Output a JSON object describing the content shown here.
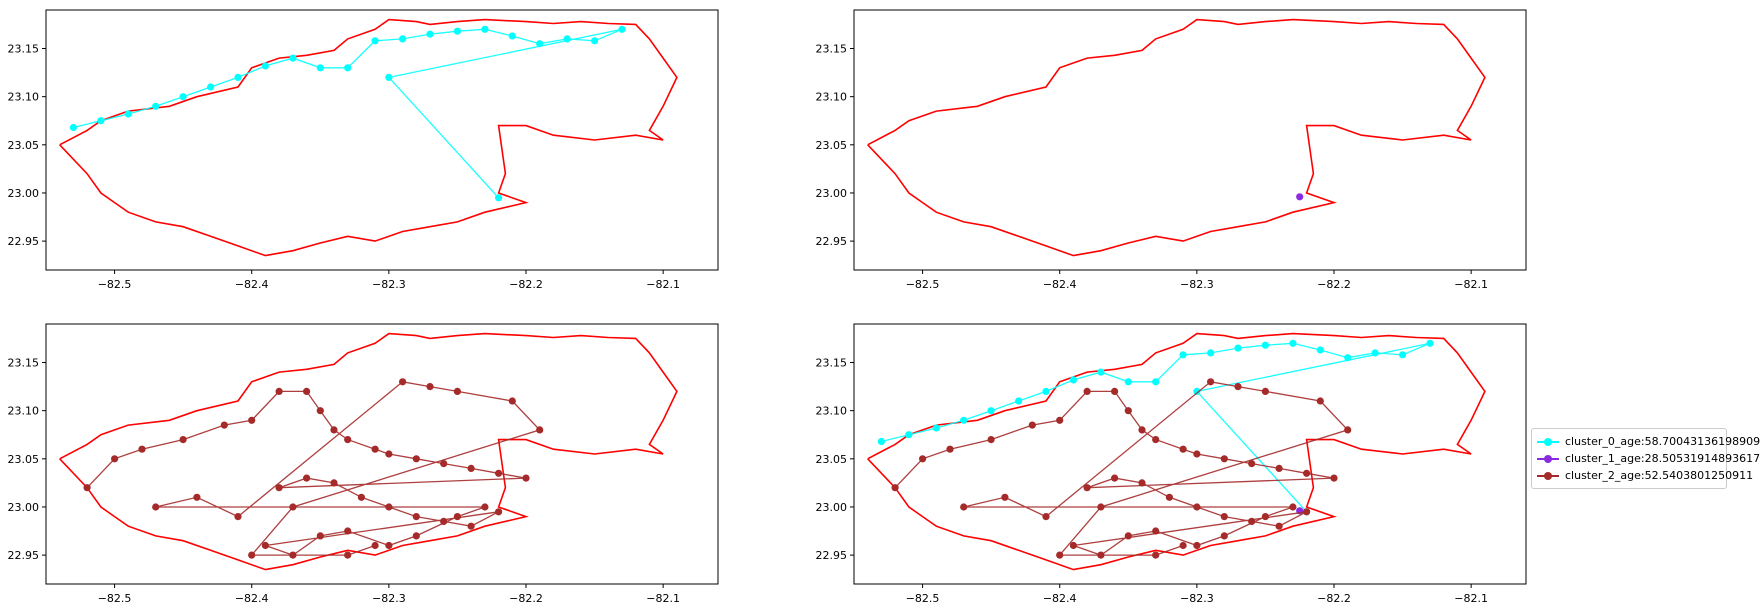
{
  "chart_data": [
    {
      "type": "scatter",
      "title": "",
      "xlabel": "",
      "ylabel": "",
      "xlim": [
        -82.55,
        -82.06
      ],
      "ylim": [
        22.92,
        23.19
      ],
      "x_ticks": [
        -82.5,
        -82.4,
        -82.3,
        -82.2,
        -82.1
      ],
      "y_ticks": [
        22.95,
        23.0,
        23.05,
        23.1,
        23.15
      ],
      "grid": false,
      "series": [
        {
          "name": "",
          "key": "cluster_0",
          "color": "#00ffff",
          "x": [
            -82.53,
            -82.51,
            -82.49,
            -82.47,
            -82.45,
            -82.43,
            -82.41,
            -82.39,
            -82.37,
            -82.35,
            -82.33,
            -82.31,
            -82.29,
            -82.27,
            -82.25,
            -82.23,
            -82.21,
            -82.19,
            -82.17,
            -82.15,
            -82.13,
            -82.3,
            -82.22
          ],
          "y": [
            23.068,
            23.075,
            23.082,
            23.09,
            23.1,
            23.11,
            23.12,
            23.132,
            23.14,
            23.13,
            23.13,
            23.158,
            23.16,
            23.165,
            23.168,
            23.17,
            23.163,
            23.155,
            23.16,
            23.158,
            23.17,
            23.12,
            22.995
          ]
        }
      ]
    },
    {
      "type": "scatter",
      "title": "",
      "xlabel": "",
      "ylabel": "",
      "xlim": [
        -82.55,
        -82.06
      ],
      "ylim": [
        22.92,
        23.19
      ],
      "x_ticks": [
        -82.5,
        -82.4,
        -82.3,
        -82.2,
        -82.1
      ],
      "y_ticks": [
        22.95,
        23.0,
        23.05,
        23.1,
        23.15
      ],
      "grid": false,
      "series": [
        {
          "name": "",
          "key": "cluster_1",
          "color": "#8a2be2",
          "x": [
            -82.225
          ],
          "y": [
            22.996
          ]
        }
      ]
    },
    {
      "type": "scatter",
      "title": "",
      "xlabel": "",
      "ylabel": "",
      "xlim": [
        -82.55,
        -82.06
      ],
      "ylim": [
        22.92,
        23.19
      ],
      "x_ticks": [
        -82.5,
        -82.4,
        -82.3,
        -82.2,
        -82.1
      ],
      "y_ticks": [
        22.95,
        23.0,
        23.05,
        23.1,
        23.15
      ],
      "grid": false,
      "series": [
        {
          "name": "",
          "key": "cluster_2",
          "color": "#a52a2a",
          "x": [
            -82.52,
            -82.5,
            -82.48,
            -82.45,
            -82.42,
            -82.4,
            -82.38,
            -82.36,
            -82.35,
            -82.34,
            -82.33,
            -82.31,
            -82.3,
            -82.28,
            -82.26,
            -82.24,
            -82.22,
            -82.2,
            -82.38,
            -82.36,
            -82.34,
            -82.32,
            -82.3,
            -82.28,
            -82.26,
            -82.24,
            -82.22,
            -82.39,
            -82.37,
            -82.35,
            -82.33,
            -82.3,
            -82.28,
            -82.25,
            -82.23,
            -82.47,
            -82.44,
            -82.41,
            -82.29,
            -82.27,
            -82.25,
            -82.21,
            -82.19,
            -82.37,
            -82.4,
            -82.33,
            -82.31
          ],
          "y": [
            23.02,
            23.05,
            23.06,
            23.07,
            23.085,
            23.09,
            23.12,
            23.12,
            23.1,
            23.08,
            23.07,
            23.06,
            23.055,
            23.05,
            23.045,
            23.04,
            23.035,
            23.03,
            23.02,
            23.03,
            23.025,
            23.01,
            23.0,
            22.99,
            22.985,
            22.98,
            22.995,
            22.96,
            22.95,
            22.97,
            22.975,
            22.96,
            22.97,
            22.99,
            23.0,
            23.0,
            23.01,
            22.99,
            23.13,
            23.125,
            23.12,
            23.11,
            23.08,
            23.0,
            22.95,
            22.95,
            22.96
          ]
        }
      ]
    },
    {
      "type": "scatter",
      "title": "",
      "xlabel": "",
      "ylabel": "",
      "xlim": [
        -82.55,
        -82.06
      ],
      "ylim": [
        22.92,
        23.19
      ],
      "x_ticks": [
        -82.5,
        -82.4,
        -82.3,
        -82.2,
        -82.1
      ],
      "y_ticks": [
        22.95,
        23.0,
        23.05,
        23.1,
        23.15
      ],
      "grid": false,
      "legend_position": "right",
      "series": [
        {
          "name": "cluster_0_age:58.70043136198909",
          "key": "cluster_0",
          "color": "#00ffff"
        },
        {
          "name": "cluster_1_age:28.50531914893617",
          "key": "cluster_1",
          "color": "#8a2be2"
        },
        {
          "name": "cluster_2_age:52.5403801250911",
          "key": "cluster_2",
          "color": "#a52a2a"
        }
      ]
    }
  ],
  "boundary": {
    "color": "#ff0000",
    "x": [
      -82.54,
      -82.52,
      -82.51,
      -82.49,
      -82.46,
      -82.44,
      -82.41,
      -82.4,
      -82.38,
      -82.36,
      -82.34,
      -82.33,
      -82.31,
      -82.3,
      -82.28,
      -82.27,
      -82.25,
      -82.23,
      -82.2,
      -82.18,
      -82.16,
      -82.14,
      -82.12,
      -82.11,
      -82.1,
      -82.09,
      -82.1,
      -82.11,
      -82.1,
      -82.12,
      -82.15,
      -82.18,
      -82.2,
      -82.22,
      -82.215,
      -82.22,
      -82.2,
      -82.23,
      -82.25,
      -82.27,
      -82.29,
      -82.31,
      -82.33,
      -82.35,
      -82.37,
      -82.39,
      -82.41,
      -82.43,
      -82.45,
      -82.47,
      -82.49,
      -82.5,
      -82.51,
      -82.52,
      -82.54
    ],
    "y": [
      23.05,
      23.065,
      23.075,
      23.085,
      23.09,
      23.1,
      23.11,
      23.13,
      23.14,
      23.143,
      23.148,
      23.16,
      23.17,
      23.18,
      23.178,
      23.175,
      23.178,
      23.18,
      23.178,
      23.176,
      23.178,
      23.176,
      23.175,
      23.16,
      23.14,
      23.12,
      23.09,
      23.065,
      23.055,
      23.06,
      23.055,
      23.06,
      23.07,
      23.07,
      23.02,
      23.0,
      22.99,
      22.98,
      22.97,
      22.965,
      22.96,
      22.95,
      22.955,
      22.948,
      22.94,
      22.935,
      22.945,
      22.955,
      22.965,
      22.97,
      22.98,
      22.99,
      23.0,
      23.02,
      23.05
    ]
  }
}
